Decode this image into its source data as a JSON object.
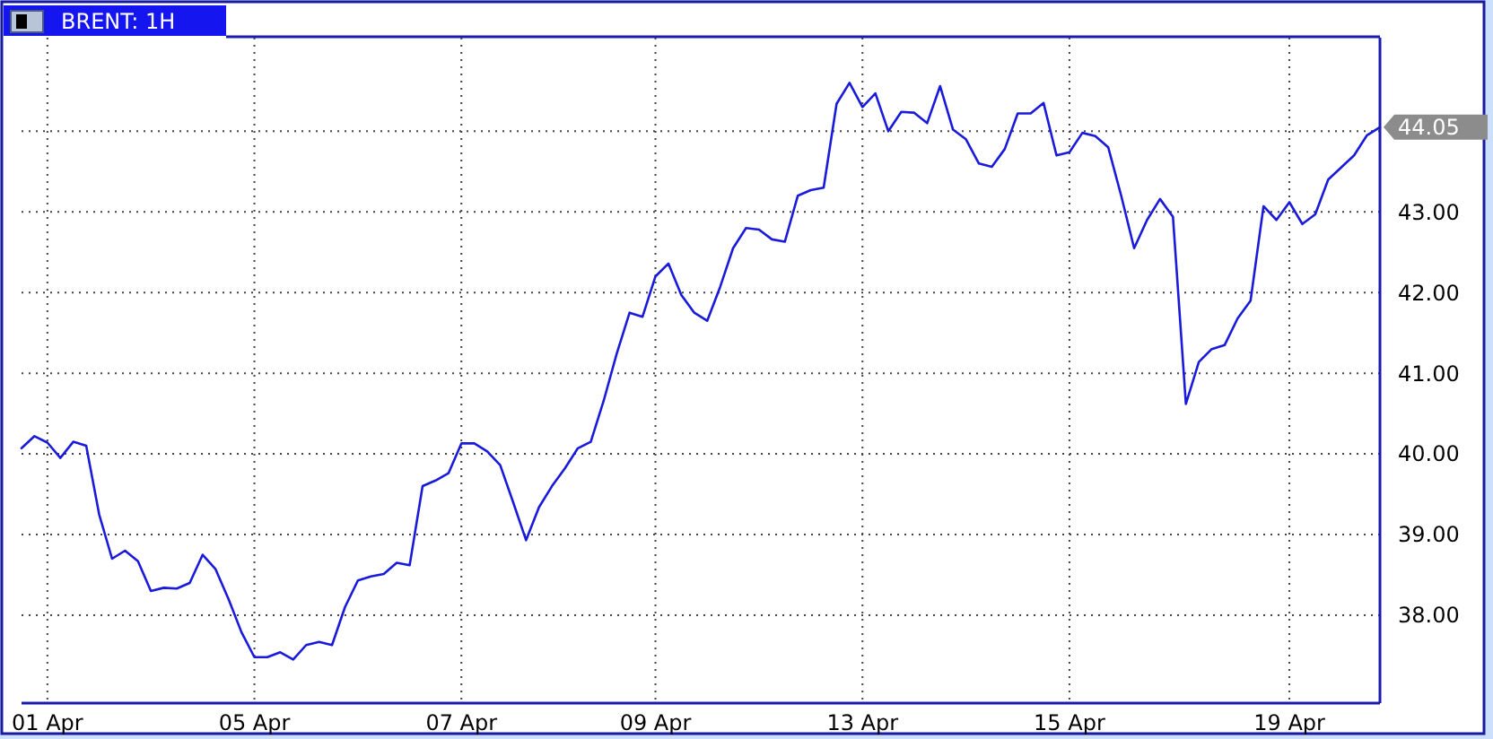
{
  "chart_data": {
    "type": "line",
    "title": "BRENT: 1H",
    "categories": [
      null,
      null,
      "01 Apr",
      null,
      null,
      null,
      null,
      null,
      null,
      null,
      null,
      null,
      null,
      null,
      null,
      null,
      null,
      null,
      "05 Apr",
      null,
      null,
      null,
      null,
      null,
      null,
      null,
      null,
      null,
      null,
      null,
      null,
      null,
      null,
      null,
      "07 Apr",
      null,
      null,
      null,
      null,
      null,
      null,
      null,
      null,
      null,
      null,
      null,
      null,
      null,
      null,
      "09 Apr",
      null,
      null,
      null,
      null,
      null,
      null,
      null,
      null,
      null,
      null,
      null,
      null,
      null,
      null,
      null,
      "13 Apr",
      null,
      null,
      null,
      null,
      null,
      null,
      null,
      null,
      null,
      null,
      null,
      null,
      null,
      null,
      null,
      "15 Apr",
      null,
      null,
      null,
      null,
      null,
      null,
      null,
      null,
      null,
      null,
      null,
      null,
      null,
      null,
      null,
      null,
      "19 Apr",
      null,
      null,
      null,
      null,
      null,
      null,
      null
    ],
    "series": [
      {
        "color": "#1a1adb",
        "values": [
          40.07,
          40.22,
          40.14,
          39.95,
          40.15,
          40.1,
          39.25,
          38.7,
          38.8,
          38.67,
          38.3,
          38.34,
          38.33,
          38.4,
          38.75,
          38.57,
          38.2,
          37.79,
          37.48,
          37.48,
          37.54,
          37.45,
          37.63,
          37.67,
          37.63,
          38.1,
          38.43,
          38.48,
          38.51,
          38.65,
          38.62,
          39.6,
          39.67,
          39.76,
          40.13,
          40.13,
          40.03,
          39.86,
          39.4,
          38.93,
          39.34,
          39.6,
          39.82,
          40.07,
          40.15,
          40.66,
          41.24,
          41.75,
          41.7,
          42.2,
          42.36,
          41.97,
          41.75,
          41.65,
          42.07,
          42.55,
          42.8,
          42.78,
          42.66,
          42.63,
          43.2,
          43.27,
          43.3,
          44.34,
          44.6,
          44.3,
          44.47,
          44,
          44.24,
          44.23,
          44.1,
          44.56,
          44.02,
          43.9,
          43.6,
          43.56,
          43.78,
          44.22,
          44.22,
          44.35,
          43.7,
          43.74,
          43.98,
          43.94,
          43.8,
          43.2,
          42.55,
          42.9,
          43.16,
          42.94,
          40.62,
          41.14,
          41.3,
          41.35,
          41.68,
          41.9,
          43.07,
          42.9,
          43.12,
          42.85,
          42.97,
          43.4,
          43.55,
          43.7,
          43.95,
          44.05
        ],
        "value_labels": [
          null,
          null,
          null,
          null,
          null,
          null,
          null,
          null,
          null,
          null,
          null,
          null,
          null,
          null,
          null,
          null,
          null,
          null,
          null,
          null,
          null,
          null,
          null,
          null,
          null,
          null,
          null,
          null,
          null,
          null,
          null,
          null,
          null,
          null,
          null,
          null,
          null,
          null,
          null,
          null,
          null,
          null,
          null,
          null,
          null,
          null,
          null,
          null,
          null,
          null,
          null,
          null,
          null,
          null,
          null,
          null,
          null,
          null,
          null,
          null,
          null,
          null,
          null,
          null,
          null,
          null,
          null,
          null,
          null,
          null,
          null,
          null,
          null,
          null,
          null,
          null,
          null,
          null,
          null,
          null,
          null,
          null,
          null,
          null,
          null,
          null,
          null,
          null,
          null,
          null,
          null,
          null,
          null,
          null,
          null,
          null,
          null,
          null,
          null,
          null,
          null,
          null,
          null,
          null,
          null,
          "44.05"
        ]
      }
    ],
    "ylim": [
      36.91,
      45.16
    ],
    "yticks": [
      {
        "value": 38,
        "label": "38.00"
      },
      {
        "value": 39,
        "label": "39.00"
      },
      {
        "value": 40,
        "label": "40.00"
      },
      {
        "value": 41,
        "label": "41.00"
      },
      {
        "value": 42,
        "label": "42.00"
      },
      {
        "value": 43,
        "label": "43.00"
      },
      {
        "value": 44,
        "label": null
      }
    ],
    "grid": true
  }
}
